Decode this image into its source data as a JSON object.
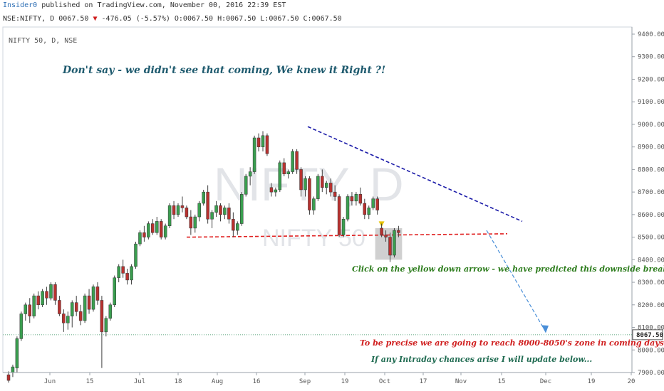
{
  "header": {
    "user": "Insider0",
    "published_on": "published on TradingView.com, November 00, 2016 22:39 EST",
    "symbol_line": {
      "symbol": "NSE:NIFTY, D",
      "price": "0067.50",
      "change": "-476.05 (-5.57%)",
      "ohlc": "O:0067.50 H:0067.50 L:0067.50 C:0067.50"
    }
  },
  "pane_label": "NIFTY 50, D, NSE",
  "watermark": {
    "main": "NIFTY, D",
    "sub": "NIFTY 50"
  },
  "annotations": {
    "headline": "Don't say - we didn't see that coming, We knew it Right ?!",
    "prediction": "Click on the yellow down arrow - we have predicted this downside breakout :)",
    "target": "To be precise we are going to reach 8000-8050's zone in coming days",
    "intraday": "If any Intraday chances arise I will update below..."
  },
  "colors": {
    "up_candle": "#3a9e4f",
    "down_candle": "#b8312f",
    "resistance_line": "#1a1aa8",
    "support_line": "#e02020",
    "projection_arrow": "#4a8fd8",
    "headline_text": "#1e5a6e",
    "prediction_text": "#2e7d1e",
    "target_text": "#d02020",
    "intraday_text": "#1e6a50"
  },
  "chart_data": {
    "type": "candlestick",
    "y_axis": {
      "ticks": [
        "7900.00",
        "8000.00",
        "8100.00",
        "8200.00",
        "8300.00",
        "8400.00",
        "8500.00",
        "8600.00",
        "8700.00",
        "8800.00",
        "8900.00",
        "9000.00",
        "9100.00",
        "9200.00",
        "9300.00",
        "9400.00"
      ],
      "range": [
        7870,
        9450
      ],
      "last_price_label": "8067.50",
      "last_price": 8067.5
    },
    "x_axis": {
      "ticks": [
        "Jun",
        "15",
        "Jul",
        "18",
        "Aug",
        "16",
        "Sep",
        "19",
        "Oct",
        "17",
        "Nov",
        "15",
        "Dec",
        "19",
        "20"
      ]
    },
    "candles": [
      {
        "o": 7890,
        "h": 7905,
        "l": 7855,
        "c": 7865
      },
      {
        "o": 7900,
        "h": 7935,
        "l": 7880,
        "c": 7925
      },
      {
        "o": 7920,
        "h": 8060,
        "l": 7900,
        "c": 8050
      },
      {
        "o": 8050,
        "h": 8170,
        "l": 8040,
        "c": 8160
      },
      {
        "o": 8160,
        "h": 8210,
        "l": 8130,
        "c": 8200
      },
      {
        "o": 8200,
        "h": 8230,
        "l": 8120,
        "c": 8150
      },
      {
        "o": 8150,
        "h": 8250,
        "l": 8140,
        "c": 8240
      },
      {
        "o": 8240,
        "h": 8260,
        "l": 8180,
        "c": 8200
      },
      {
        "o": 8200,
        "h": 8270,
        "l": 8190,
        "c": 8260
      },
      {
        "o": 8260,
        "h": 8280,
        "l": 8200,
        "c": 8230
      },
      {
        "o": 8230,
        "h": 8300,
        "l": 8220,
        "c": 8290
      },
      {
        "o": 8290,
        "h": 8300,
        "l": 8200,
        "c": 8220
      },
      {
        "o": 8220,
        "h": 8240,
        "l": 8150,
        "c": 8160
      },
      {
        "o": 8160,
        "h": 8180,
        "l": 8080,
        "c": 8120
      },
      {
        "o": 8120,
        "h": 8170,
        "l": 8090,
        "c": 8150
      },
      {
        "o": 8150,
        "h": 8220,
        "l": 8100,
        "c": 8210
      },
      {
        "o": 8210,
        "h": 8240,
        "l": 8150,
        "c": 8170
      },
      {
        "o": 8170,
        "h": 8200,
        "l": 8110,
        "c": 8130
      },
      {
        "o": 8130,
        "h": 8250,
        "l": 8120,
        "c": 8240
      },
      {
        "o": 8240,
        "h": 8270,
        "l": 8160,
        "c": 8180
      },
      {
        "o": 8180,
        "h": 8290,
        "l": 8170,
        "c": 8280
      },
      {
        "o": 8280,
        "h": 8300,
        "l": 8200,
        "c": 8220
      },
      {
        "o": 8220,
        "h": 8240,
        "l": 7920,
        "c": 8080
      },
      {
        "o": 8080,
        "h": 8150,
        "l": 8060,
        "c": 8140
      },
      {
        "o": 8140,
        "h": 8210,
        "l": 8130,
        "c": 8200
      },
      {
        "o": 8200,
        "h": 8330,
        "l": 8190,
        "c": 8320
      },
      {
        "o": 8320,
        "h": 8380,
        "l": 8300,
        "c": 8370
      },
      {
        "o": 8370,
        "h": 8400,
        "l": 8320,
        "c": 8340
      },
      {
        "o": 8340,
        "h": 8360,
        "l": 8290,
        "c": 8310
      },
      {
        "o": 8310,
        "h": 8380,
        "l": 8290,
        "c": 8370
      },
      {
        "o": 8370,
        "h": 8480,
        "l": 8360,
        "c": 8470
      },
      {
        "o": 8470,
        "h": 8530,
        "l": 8460,
        "c": 8520
      },
      {
        "o": 8520,
        "h": 8550,
        "l": 8480,
        "c": 8500
      },
      {
        "o": 8500,
        "h": 8570,
        "l": 8490,
        "c": 8560
      },
      {
        "o": 8560,
        "h": 8580,
        "l": 8510,
        "c": 8520
      },
      {
        "o": 8520,
        "h": 8590,
        "l": 8510,
        "c": 8570
      },
      {
        "o": 8570,
        "h": 8580,
        "l": 8490,
        "c": 8500
      },
      {
        "o": 8500,
        "h": 8560,
        "l": 8490,
        "c": 8550
      },
      {
        "o": 8550,
        "h": 8650,
        "l": 8540,
        "c": 8640
      },
      {
        "o": 8640,
        "h": 8660,
        "l": 8580,
        "c": 8600
      },
      {
        "o": 8600,
        "h": 8650,
        "l": 8590,
        "c": 8640
      },
      {
        "o": 8640,
        "h": 8680,
        "l": 8610,
        "c": 8630
      },
      {
        "o": 8630,
        "h": 8640,
        "l": 8580,
        "c": 8590
      },
      {
        "o": 8590,
        "h": 8620,
        "l": 8510,
        "c": 8540
      },
      {
        "o": 8540,
        "h": 8600,
        "l": 8520,
        "c": 8590
      },
      {
        "o": 8590,
        "h": 8660,
        "l": 8570,
        "c": 8650
      },
      {
        "o": 8650,
        "h": 8710,
        "l": 8640,
        "c": 8700
      },
      {
        "o": 8700,
        "h": 8730,
        "l": 8560,
        "c": 8580
      },
      {
        "o": 8580,
        "h": 8620,
        "l": 8540,
        "c": 8610
      },
      {
        "o": 8610,
        "h": 8660,
        "l": 8590,
        "c": 8640
      },
      {
        "o": 8640,
        "h": 8650,
        "l": 8570,
        "c": 8600
      },
      {
        "o": 8600,
        "h": 8640,
        "l": 8580,
        "c": 8630
      },
      {
        "o": 8630,
        "h": 8650,
        "l": 8560,
        "c": 8580
      },
      {
        "o": 8580,
        "h": 8610,
        "l": 8500,
        "c": 8530
      },
      {
        "o": 8530,
        "h": 8570,
        "l": 8510,
        "c": 8560
      },
      {
        "o": 8560,
        "h": 8700,
        "l": 8550,
        "c": 8690
      },
      {
        "o": 8690,
        "h": 8780,
        "l": 8680,
        "c": 8770
      },
      {
        "o": 8770,
        "h": 8810,
        "l": 8730,
        "c": 8790
      },
      {
        "o": 8790,
        "h": 8950,
        "l": 8780,
        "c": 8940
      },
      {
        "o": 8940,
        "h": 8960,
        "l": 8880,
        "c": 8900
      },
      {
        "o": 8900,
        "h": 8970,
        "l": 8880,
        "c": 8950
      },
      {
        "o": 8950,
        "h": 8960,
        "l": 8860,
        "c": 8870
      },
      {
        "o": 8720,
        "h": 8740,
        "l": 8680,
        "c": 8700
      },
      {
        "o": 8700,
        "h": 8720,
        "l": 8680,
        "c": 8710
      },
      {
        "o": 8710,
        "h": 8840,
        "l": 8700,
        "c": 8830
      },
      {
        "o": 8830,
        "h": 8850,
        "l": 8770,
        "c": 8780
      },
      {
        "o": 8780,
        "h": 8800,
        "l": 8760,
        "c": 8790
      },
      {
        "o": 8790,
        "h": 8890,
        "l": 8780,
        "c": 8880
      },
      {
        "o": 8880,
        "h": 8890,
        "l": 8780,
        "c": 8800
      },
      {
        "o": 8800,
        "h": 8810,
        "l": 8680,
        "c": 8710
      },
      {
        "o": 8710,
        "h": 8770,
        "l": 8680,
        "c": 8760
      },
      {
        "o": 8760,
        "h": 8770,
        "l": 8600,
        "c": 8620
      },
      {
        "o": 8620,
        "h": 8680,
        "l": 8600,
        "c": 8670
      },
      {
        "o": 8670,
        "h": 8780,
        "l": 8660,
        "c": 8770
      },
      {
        "o": 8770,
        "h": 8800,
        "l": 8700,
        "c": 8720
      },
      {
        "o": 8720,
        "h": 8750,
        "l": 8690,
        "c": 8740
      },
      {
        "o": 8740,
        "h": 8760,
        "l": 8680,
        "c": 8700
      },
      {
        "o": 8700,
        "h": 8730,
        "l": 8660,
        "c": 8680
      },
      {
        "o": 8680,
        "h": 8690,
        "l": 8500,
        "c": 8510
      },
      {
        "o": 8510,
        "h": 8590,
        "l": 8500,
        "c": 8580
      },
      {
        "o": 8580,
        "h": 8690,
        "l": 8570,
        "c": 8680
      },
      {
        "o": 8680,
        "h": 8700,
        "l": 8640,
        "c": 8660
      },
      {
        "o": 8660,
        "h": 8700,
        "l": 8640,
        "c": 8690
      },
      {
        "o": 8690,
        "h": 8720,
        "l": 8640,
        "c": 8650
      },
      {
        "o": 8650,
        "h": 8670,
        "l": 8580,
        "c": 8600
      },
      {
        "o": 8600,
        "h": 8640,
        "l": 8580,
        "c": 8630
      },
      {
        "o": 8630,
        "h": 8680,
        "l": 8620,
        "c": 8670
      },
      {
        "o": 8670,
        "h": 8680,
        "l": 8600,
        "c": 8620
      },
      {
        "o": 8540,
        "h": 8560,
        "l": 8500,
        "c": 8510
      },
      {
        "o": 8510,
        "h": 8530,
        "l": 8480,
        "c": 8500
      },
      {
        "o": 8500,
        "h": 8520,
        "l": 8390,
        "c": 8420
      },
      {
        "o": 8420,
        "h": 8540,
        "l": 8410,
        "c": 8530
      },
      {
        "o": 8530,
        "h": 8550,
        "l": 8500,
        "c": 8520
      }
    ]
  }
}
